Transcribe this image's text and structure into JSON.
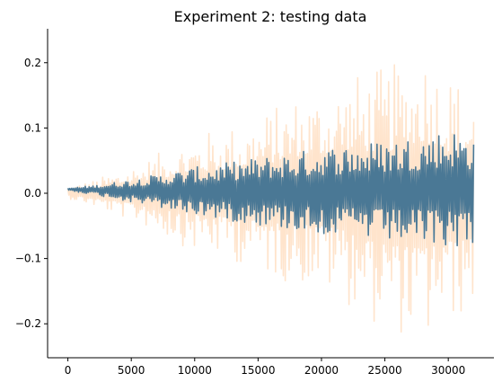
{
  "chart_data": {
    "type": "line",
    "title": "Experiment 2: testing data",
    "xlabel": "",
    "ylabel": "",
    "xlim": [
      -1600,
      33600
    ],
    "ylim": [
      -0.252,
      0.252
    ],
    "x_ticks": [
      0,
      5000,
      10000,
      15000,
      20000,
      25000,
      30000
    ],
    "x_tick_labels": [
      "0",
      "5000",
      "10000",
      "15000",
      "20000",
      "25000",
      "30000"
    ],
    "y_ticks": [
      -0.2,
      -0.1,
      0.0,
      0.1,
      0.2
    ],
    "y_tick_labels": [
      "−0.2",
      "−0.1",
      "0.0",
      "0.1",
      "0.2"
    ],
    "grid": false,
    "legend": "none",
    "series": [
      {
        "role": "band",
        "color": "#ffe4cc",
        "x": [
          0,
          2000,
          4000,
          6000,
          8000,
          10000,
          12000,
          14000,
          16000,
          18000,
          20000,
          22000,
          24000,
          26000,
          28000,
          30000,
          32000
        ],
        "upper": [
          0.01,
          0.02,
          0.035,
          0.05,
          0.07,
          0.09,
          0.1,
          0.11,
          0.13,
          0.15,
          0.16,
          0.18,
          0.19,
          0.2,
          0.23,
          0.19,
          0.16
        ],
        "lower": [
          -0.008,
          -0.02,
          -0.035,
          -0.05,
          -0.07,
          -0.09,
          -0.1,
          -0.11,
          -0.13,
          -0.14,
          -0.15,
          -0.17,
          -0.2,
          -0.215,
          -0.235,
          -0.2,
          -0.18
        ]
      },
      {
        "role": "signal",
        "color": "#4a7895",
        "x": [
          0,
          2000,
          4000,
          6000,
          8000,
          10000,
          12000,
          14000,
          16000,
          18000,
          20000,
          22000,
          24000,
          26000,
          28000,
          30000,
          32000
        ],
        "upper": [
          0.008,
          0.012,
          0.018,
          0.025,
          0.032,
          0.04,
          0.045,
          0.052,
          0.058,
          0.064,
          0.07,
          0.075,
          0.08,
          0.085,
          0.09,
          0.1,
          0.09
        ],
        "lower": [
          0.004,
          -0.002,
          -0.01,
          -0.018,
          -0.026,
          -0.034,
          -0.04,
          -0.046,
          -0.052,
          -0.058,
          -0.063,
          -0.068,
          -0.073,
          -0.077,
          -0.08,
          -0.083,
          -0.08
        ]
      }
    ]
  }
}
